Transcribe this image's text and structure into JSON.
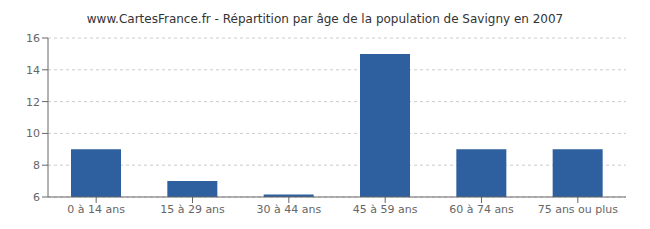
{
  "chart_data": {
    "type": "bar",
    "title": "www.CartesFrance.fr - Répartition par âge de la population de Savigny en 2007",
    "categories": [
      "0 à 14 ans",
      "15 à 29 ans",
      "30 à 44 ans",
      "45 à 59 ans",
      "60 à 74 ans",
      "75 ans ou plus"
    ],
    "values": [
      9,
      7,
      6.15,
      15,
      9,
      9
    ],
    "color": "#2e5f9e",
    "ylim": [
      6,
      16
    ],
    "yticks": [
      6,
      8,
      10,
      12,
      14,
      16
    ],
    "grid": true
  }
}
